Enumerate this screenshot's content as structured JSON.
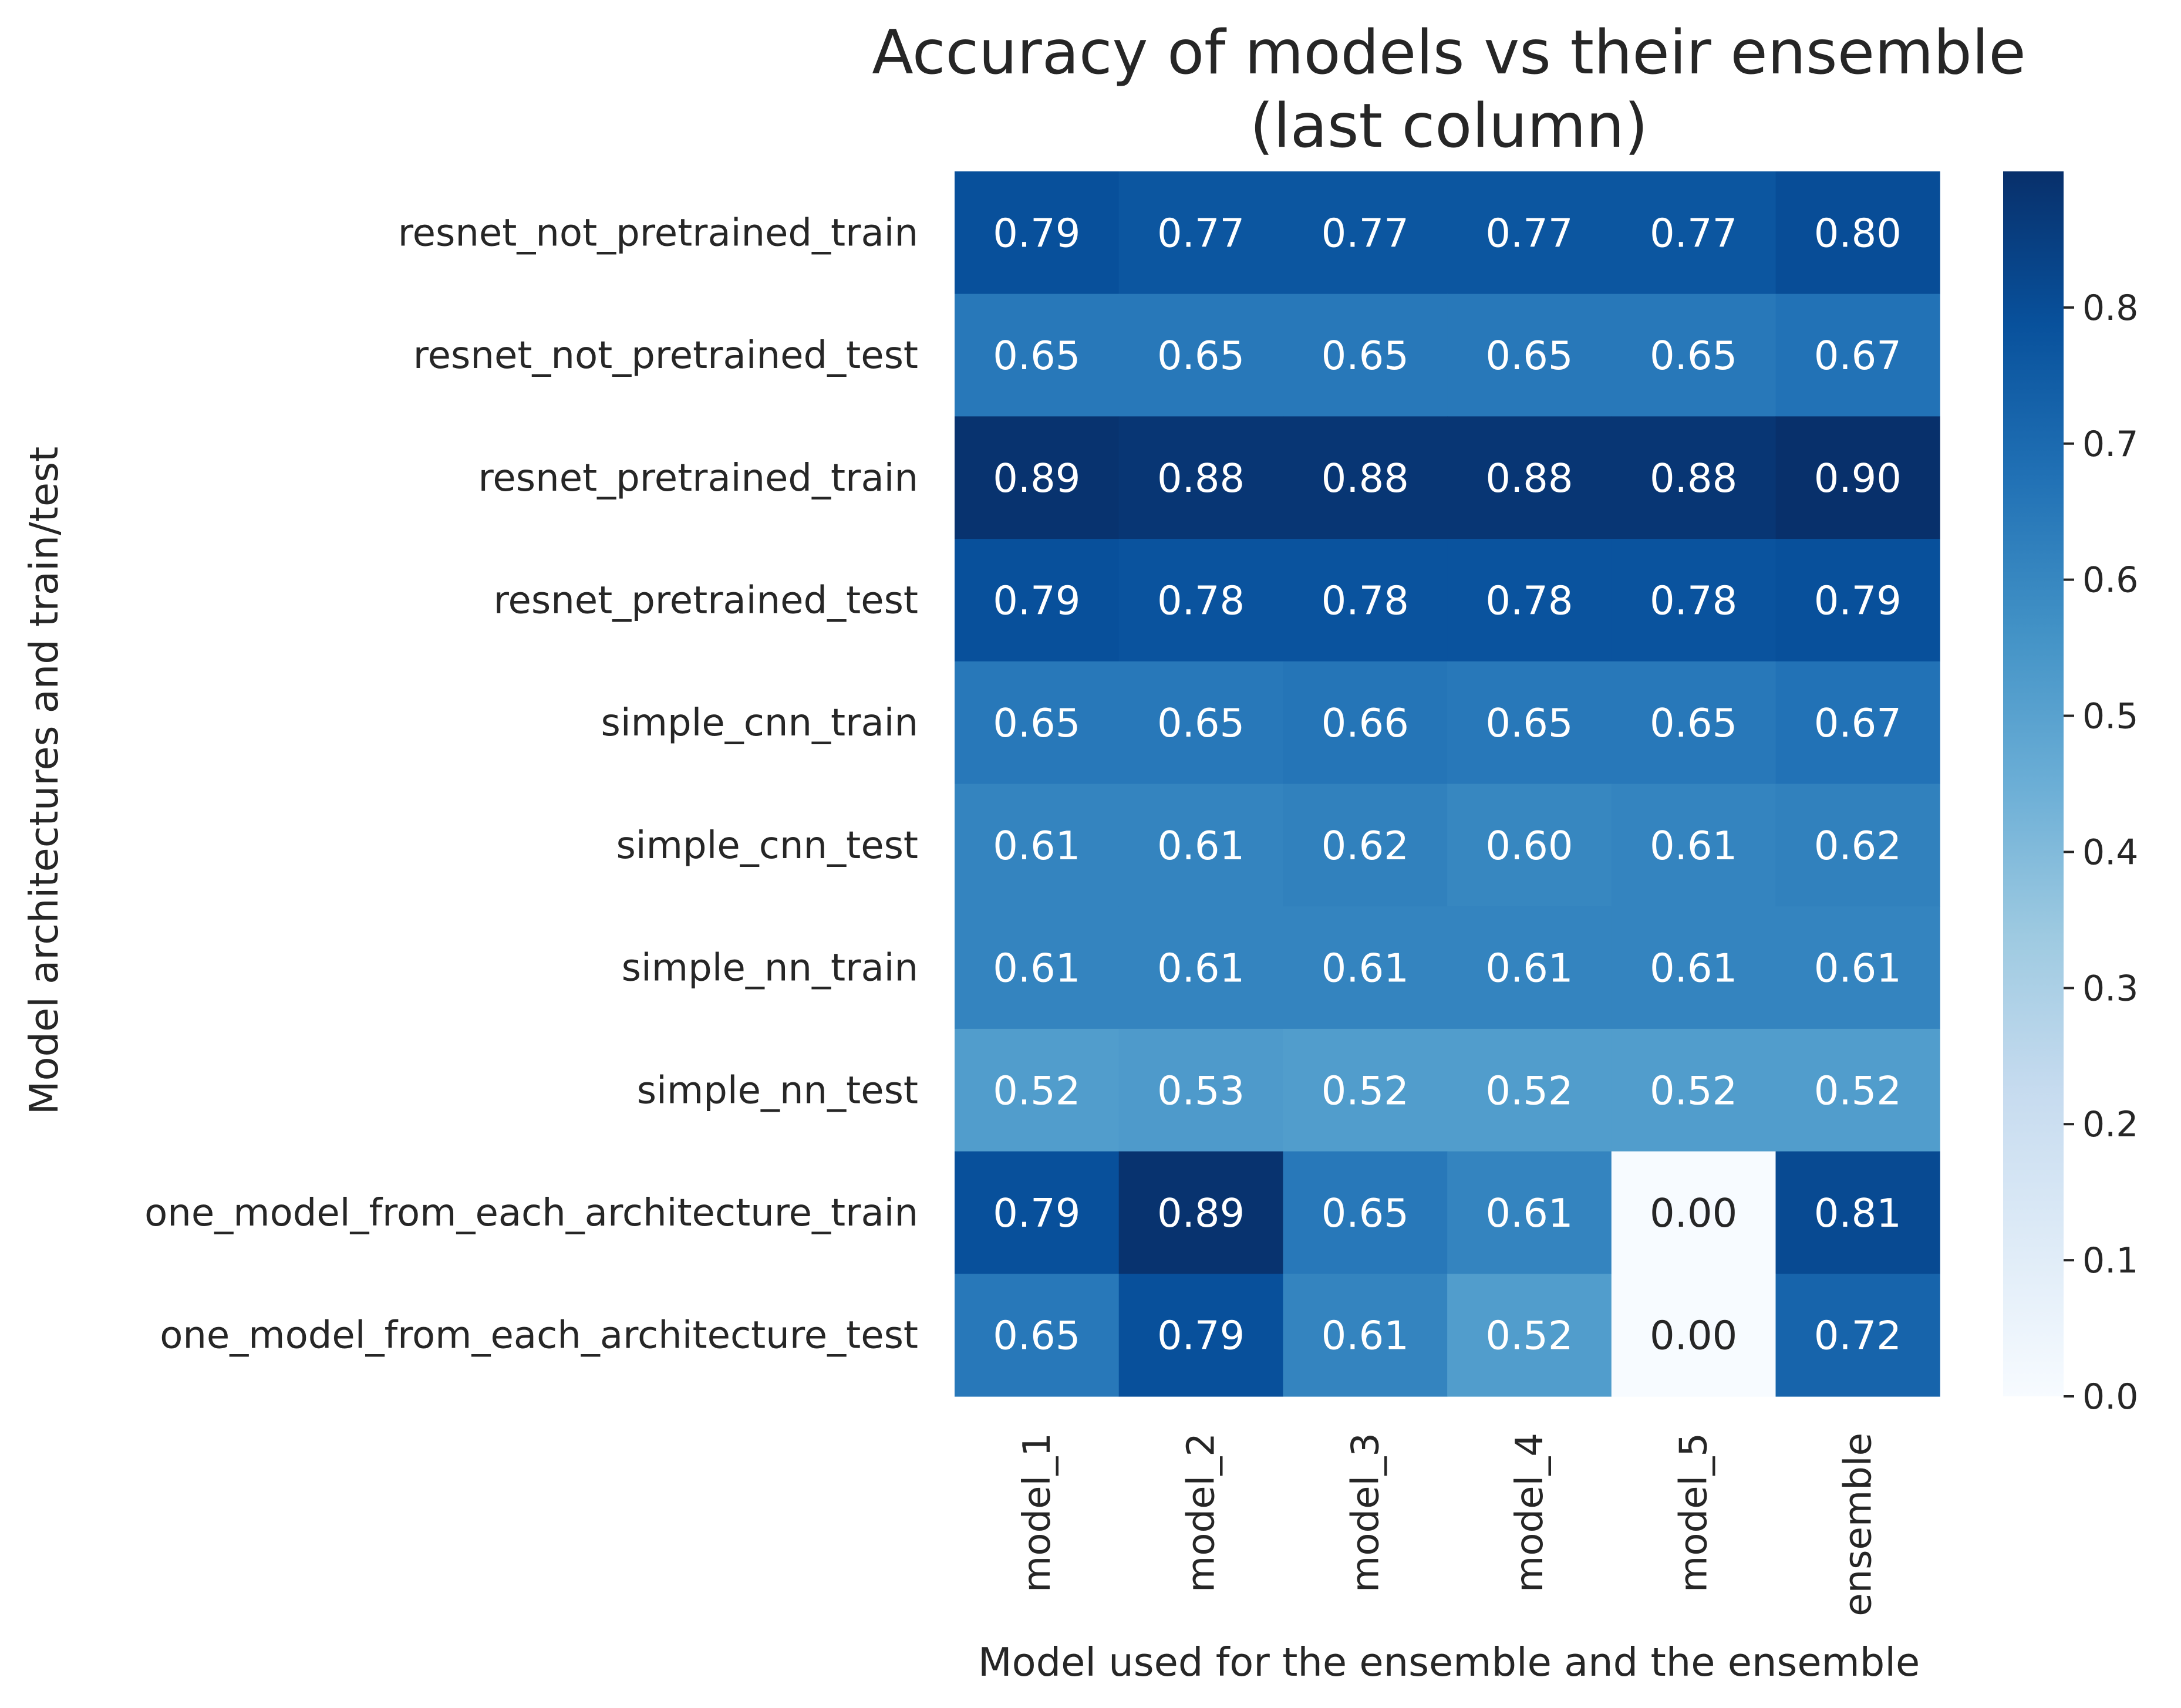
{
  "chart_data": {
    "type": "heatmap",
    "title_lines": [
      "Accuracy of models vs their ensemble",
      "(last column)"
    ],
    "xlabel": "Model used for the ensemble and the ensemble",
    "ylabel": "Model architectures and train/test",
    "columns": [
      "model_1",
      "model_2",
      "model_3",
      "model_4",
      "model_5",
      "ensemble"
    ],
    "rows": [
      "resnet_not_pretrained_train",
      "resnet_not_pretrained_test",
      "resnet_pretrained_train",
      "resnet_pretrained_test",
      "simple_cnn_train",
      "simple_cnn_test",
      "simple_nn_train",
      "simple_nn_test",
      "one_model_from_each_architecture_train",
      "one_model_from_each_architecture_test"
    ],
    "values": [
      [
        0.79,
        0.77,
        0.77,
        0.77,
        0.77,
        0.8
      ],
      [
        0.65,
        0.65,
        0.65,
        0.65,
        0.65,
        0.67
      ],
      [
        0.89,
        0.88,
        0.88,
        0.88,
        0.88,
        0.9
      ],
      [
        0.79,
        0.78,
        0.78,
        0.78,
        0.78,
        0.79
      ],
      [
        0.65,
        0.65,
        0.66,
        0.65,
        0.65,
        0.67
      ],
      [
        0.61,
        0.61,
        0.62,
        0.6,
        0.61,
        0.62
      ],
      [
        0.61,
        0.61,
        0.61,
        0.61,
        0.61,
        0.61
      ],
      [
        0.52,
        0.53,
        0.52,
        0.52,
        0.52,
        0.52
      ],
      [
        0.79,
        0.89,
        0.65,
        0.61,
        0.0,
        0.81
      ],
      [
        0.65,
        0.79,
        0.61,
        0.52,
        0.0,
        0.72
      ]
    ],
    "value_format": "2 decimals",
    "colormap": "Blues",
    "colorbar": {
      "min": 0.0,
      "max": 0.9,
      "ticks": [
        0.0,
        0.1,
        0.2,
        0.3,
        0.4,
        0.5,
        0.6,
        0.7,
        0.8
      ],
      "tick_labels": [
        "0.0",
        "0.1",
        "0.2",
        "0.3",
        "0.4",
        "0.5",
        "0.6",
        "0.7",
        "0.8"
      ],
      "placement": "right"
    },
    "grid": false
  }
}
